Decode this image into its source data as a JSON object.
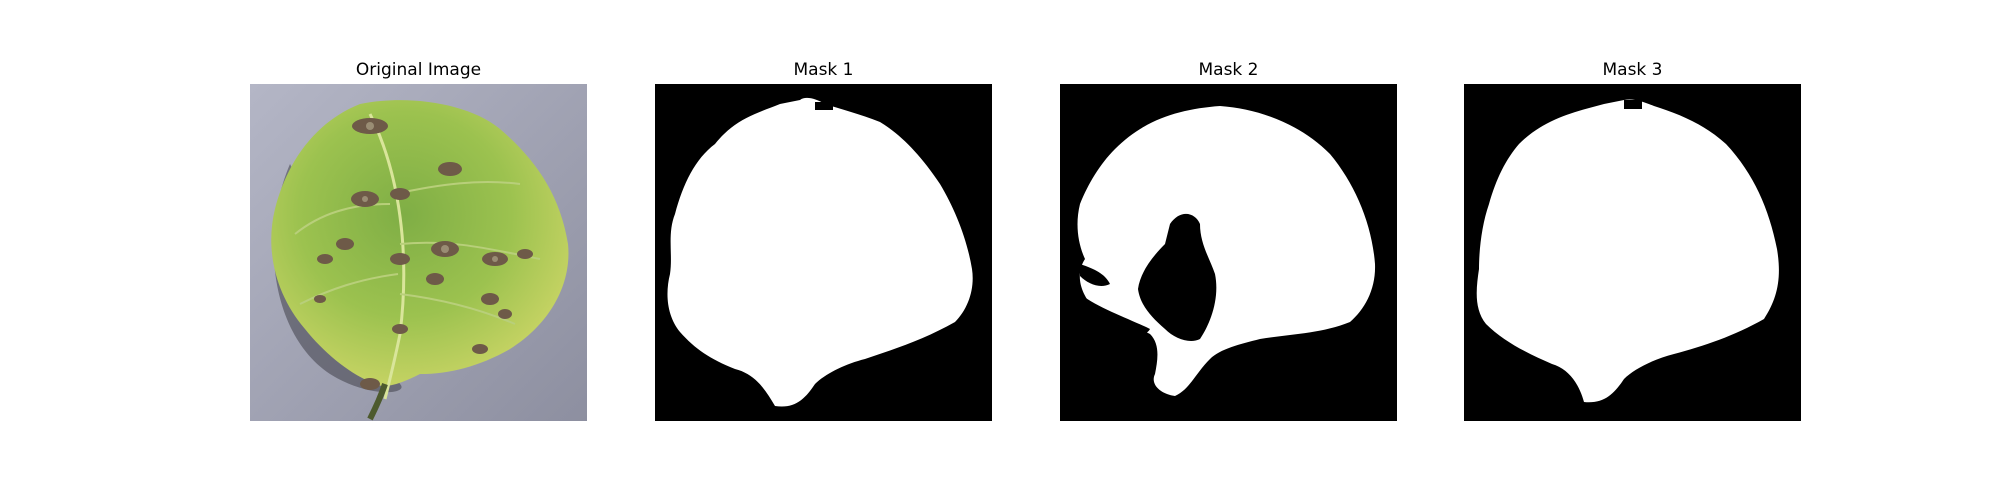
{
  "figure": {
    "panels": [
      {
        "title": "Original Image",
        "kind": "photo",
        "subject": "leaf-photo"
      },
      {
        "title": "Mask 1",
        "kind": "mask",
        "subject": "leaf-mask"
      },
      {
        "title": "Mask 2",
        "kind": "mask",
        "subject": "leaf-mask"
      },
      {
        "title": "Mask 3",
        "kind": "mask",
        "subject": "leaf-mask"
      }
    ],
    "colors": {
      "background": "#ffffff",
      "mask_background": "#000000",
      "mask_foreground": "#ffffff",
      "photo_backdrop": "#a4a5b6",
      "leaf_green": "#8fbf4d",
      "leaf_yellow": "#c9d660",
      "lesion_brown": "#6e5a48"
    }
  }
}
